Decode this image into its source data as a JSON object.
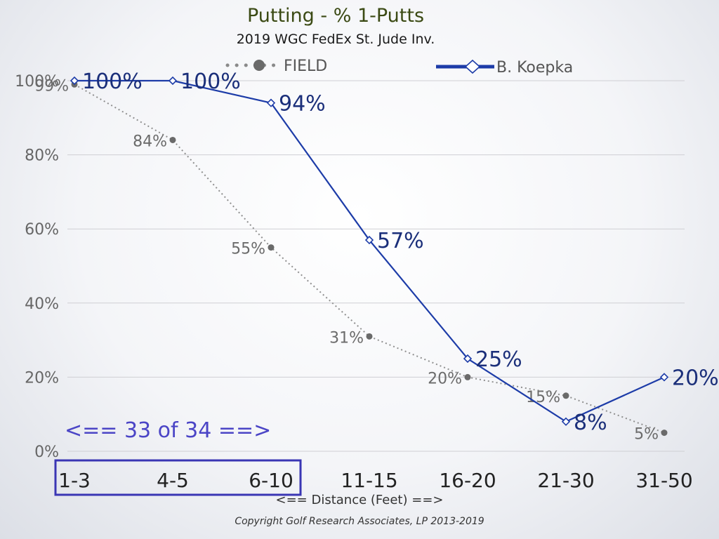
{
  "chart_data": {
    "type": "line",
    "title": "Putting - % 1-Putts",
    "subtitle": "2019 WGC FedEx St. Jude Inv.",
    "xlabel": "<== Distance (Feet) ==>",
    "ylabel": "",
    "categories": [
      "1-3",
      "4-5",
      "6-10",
      "11-15",
      "16-20",
      "21-30",
      "31-50"
    ],
    "ylim": [
      0,
      100
    ],
    "yticks": [
      "0%",
      "20%",
      "40%",
      "60%",
      "80%",
      "100%"
    ],
    "grid": true,
    "legend_position": "top",
    "series": [
      {
        "name": "FIELD",
        "values": [
          99,
          84,
          55,
          31,
          20,
          15,
          5
        ],
        "labels": [
          "99%",
          "84%",
          "55%",
          "31%",
          "20%",
          "15%",
          "5%"
        ],
        "style": "dotted",
        "marker": "filled-circle",
        "color": "#707070"
      },
      {
        "name": "B. Koepka",
        "values": [
          100,
          100,
          94,
          57,
          25,
          8,
          20
        ],
        "labels": [
          "100%",
          "100%",
          "94%",
          "57%",
          "25%",
          "8%",
          "20%"
        ],
        "style": "solid",
        "marker": "open-diamond",
        "color": "#1d3ca8"
      }
    ],
    "annotations": {
      "rank_text": "<== 33 of 34 ==>",
      "box_color": "#3a36b4",
      "box_categories": [
        "1-3",
        "4-5",
        "6-10"
      ]
    },
    "copyright": "Copyright Golf Research Associates, LP 2013-2019"
  }
}
